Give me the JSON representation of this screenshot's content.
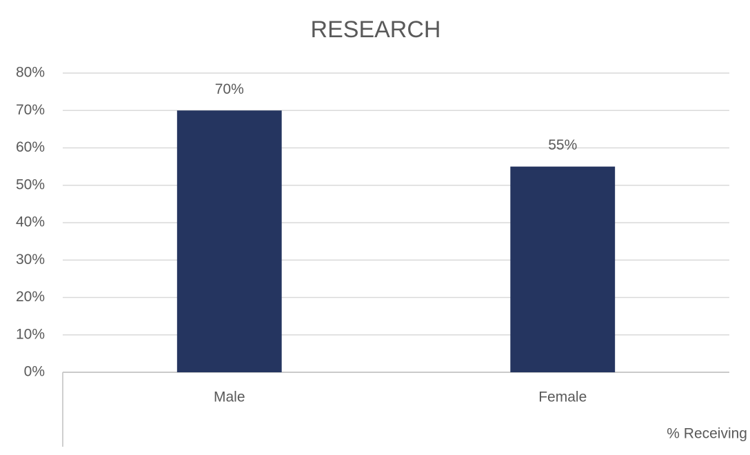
{
  "chart_data": {
    "type": "bar",
    "title": "RESEARCH",
    "categories": [
      "Male",
      "Female"
    ],
    "values": [
      70,
      55
    ],
    "value_labels": [
      "70%",
      "55%"
    ],
    "color": "#253560",
    "x_label": "% Receiving",
    "ylim": [
      0,
      80
    ],
    "yticks": [
      {
        "value": 0,
        "label": "0%"
      },
      {
        "value": 10,
        "label": "10%"
      },
      {
        "value": 20,
        "label": "20%"
      },
      {
        "value": 30,
        "label": "30%"
      },
      {
        "value": 40,
        "label": "40%"
      },
      {
        "value": 50,
        "label": "50%"
      },
      {
        "value": 60,
        "label": "60%"
      },
      {
        "value": 70,
        "label": "70%"
      },
      {
        "value": 80,
        "label": "80%"
      }
    ],
    "grid": true
  }
}
